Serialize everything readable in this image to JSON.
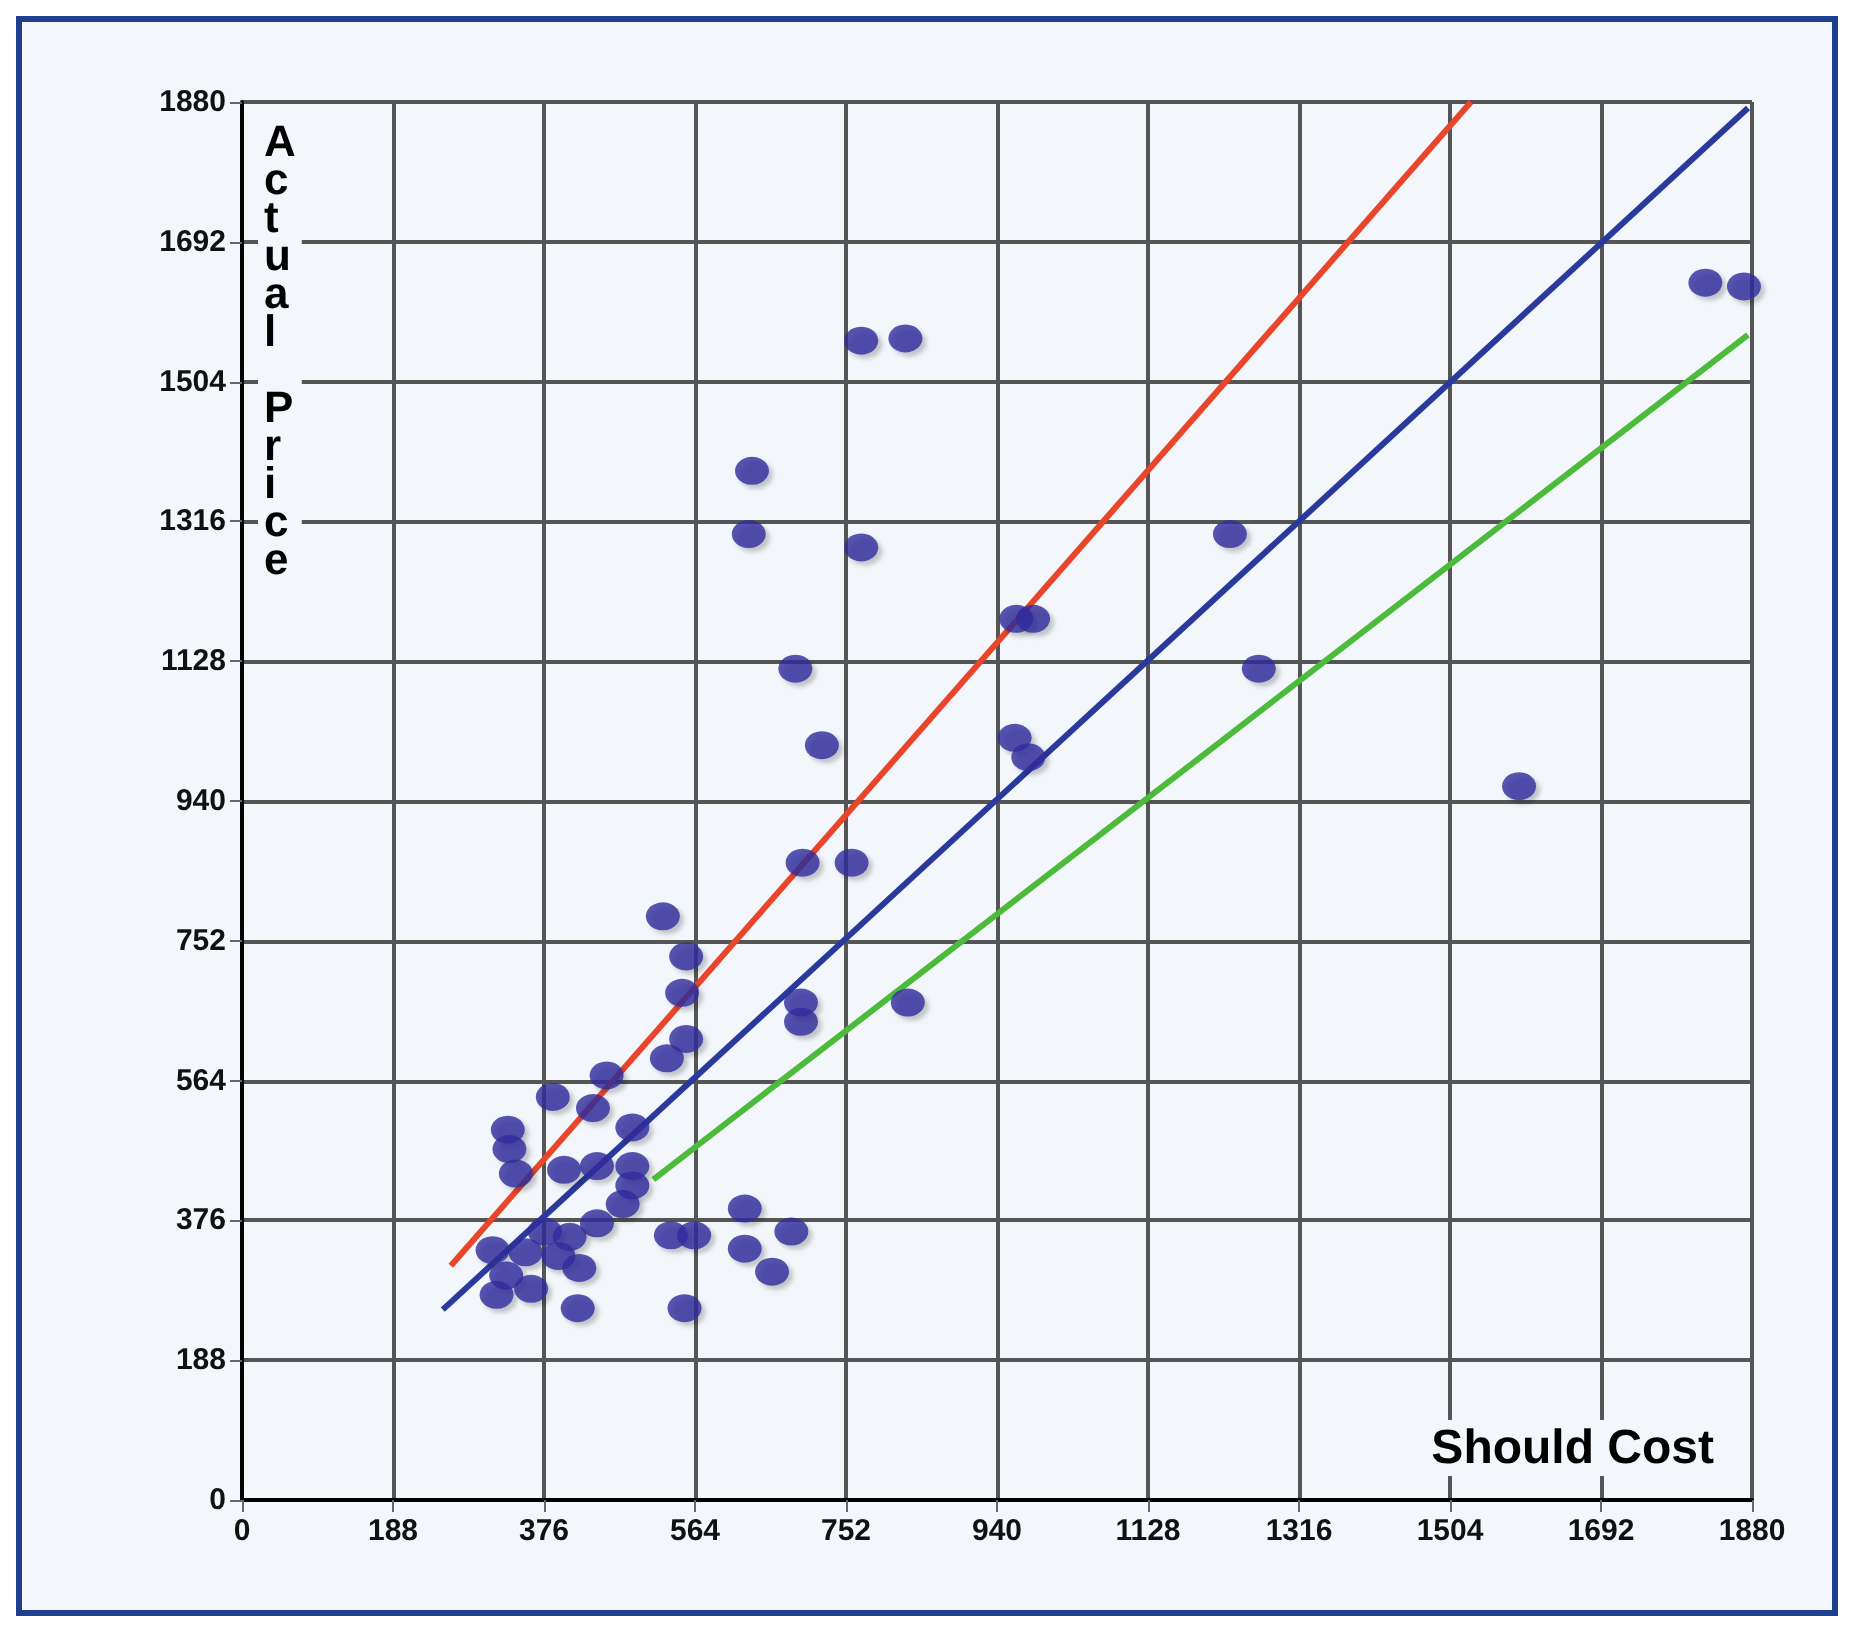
{
  "chart_data": {
    "type": "scatter",
    "xlabel": "Should Cost",
    "ylabel": "Actual Price",
    "xlim": [
      0,
      1880
    ],
    "ylim": [
      0,
      1880
    ],
    "xticks": [
      0,
      188,
      376,
      564,
      752,
      940,
      1128,
      1316,
      1504,
      1692,
      1880
    ],
    "yticks": [
      0,
      188,
      376,
      564,
      752,
      940,
      1128,
      1316,
      1504,
      1692,
      1880
    ],
    "grid": true,
    "marker": "circle",
    "series": [
      {
        "type": "line",
        "color": "#e8452b",
        "marker": "none",
        "x": [
          260,
          1530
        ],
        "values": [
          315,
          1880
        ]
      },
      {
        "type": "line",
        "color": "#2a3a9c",
        "marker": "none",
        "x": [
          250,
          1875
        ],
        "values": [
          256,
          1872
        ]
      },
      {
        "type": "line",
        "color": "#4cbb3c",
        "marker": "none",
        "x": [
          512,
          1875
        ],
        "values": [
          431,
          1567
        ]
      },
      {
        "color": "#2e2d9c",
        "x": [
          524,
          553,
          548,
          553,
          529,
          454,
          387,
          437,
          486,
          331,
          333,
          341,
          401,
          442,
          486,
          486,
          474,
          442,
          377,
          408,
          312,
          353,
          394,
          420,
          329,
          317,
          360,
          418,
          551,
          534,
          563,
          626,
          626,
          684,
          660,
          698,
          759,
          696,
          696,
          829,
          771,
          826,
          635,
          631,
          771,
          689,
          722,
          1822,
          1870,
          1230,
          964,
          985,
          1266,
          962,
          979,
          1590
        ],
        "values": [
          785,
          731,
          682,
          620,
          594,
          571,
          542,
          527,
          501,
          498,
          472,
          439,
          444,
          449,
          449,
          423,
          398,
          372,
          361,
          354,
          336,
          333,
          328,
          312,
          302,
          276,
          284,
          258,
          258,
          356,
          356,
          392,
          338,
          361,
          307,
          857,
          857,
          669,
          643,
          669,
          1559,
          1562,
          1384,
          1299,
          1281,
          1118,
          1015,
          1637,
          1632,
          1299,
          1185,
          1185,
          1118,
          1025,
          999,
          960
        ]
      }
    ]
  }
}
